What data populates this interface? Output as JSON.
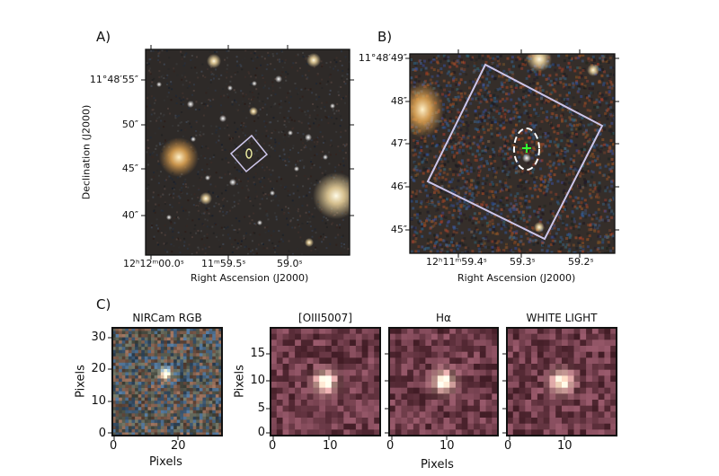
{
  "panels": {
    "a": {
      "label": "A)",
      "y_ticks": [
        "11°48′55″",
        "50″",
        "45″",
        "40″"
      ],
      "x_ticks": [
        "12ʰ12ᵐ00.0ˢ",
        "11ᵐ59.5ˢ",
        "59.0ˢ"
      ],
      "xlabel": "Right Ascension (J2000)",
      "ylabel": "Declination (J2000)"
    },
    "b": {
      "label": "B)",
      "y_ticks": [
        "11°48′49″",
        "48″",
        "47″",
        "46″",
        "45″"
      ],
      "x_ticks": [
        "12ʰ11ᵐ59.4ˢ",
        "59.3ˢ",
        "59.2ˢ"
      ],
      "xlabel": "Right Ascension (J2000)"
    },
    "c": {
      "label": "C)",
      "rgb": {
        "title": "NIRCam RGB",
        "y_ticks": [
          "30",
          "20",
          "10",
          "0"
        ],
        "x_ticks": [
          "0",
          "20"
        ],
        "xlabel": "Pixels",
        "ylabel": "Pixels"
      },
      "maps": {
        "titles": [
          "[OIII5007]",
          "Hα",
          "WHITE LIGHT"
        ],
        "y_ticks": [
          "15",
          "10",
          "5",
          "0"
        ],
        "x_ticks": [
          "0",
          "10"
        ],
        "xlabel": "Pixels",
        "ylabel": "Pixels"
      }
    }
  },
  "colors": {
    "box": "#cdc6ea",
    "marker": "#33ff33",
    "ellipse_a": "#e8e8a0",
    "ellipse_b": "#ffffff"
  }
}
